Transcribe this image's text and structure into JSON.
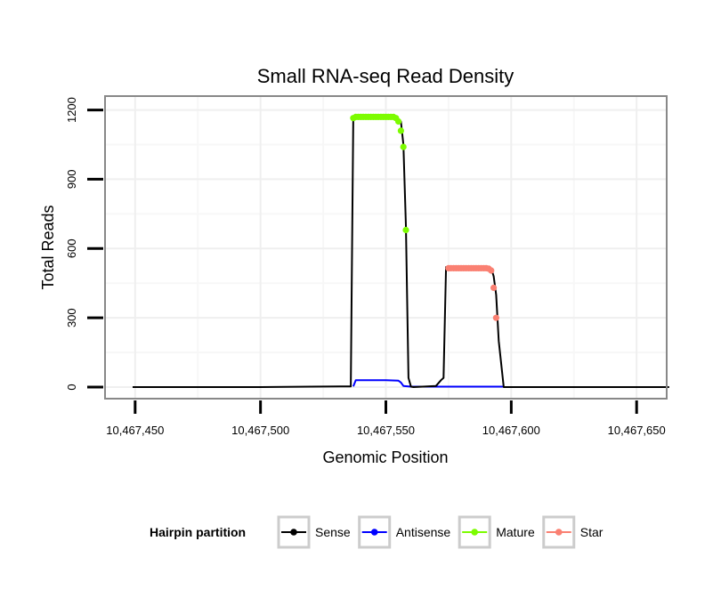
{
  "chart_data": {
    "type": "line",
    "title": "Small RNA-seq Read Density",
    "xlabel": "Genomic Position",
    "ylabel": "Total Reads",
    "xlim": [
      10467438,
      10467662
    ],
    "ylim": [
      -50,
      1260
    ],
    "x_ticks": [
      10467450,
      10467500,
      10467550,
      10467600,
      10467650
    ],
    "x_tick_labels": [
      "10,467,450",
      "10,467,500",
      "10,467,550",
      "10,467,600",
      "10,467,650"
    ],
    "y_ticks": [
      0,
      300,
      600,
      900,
      1200
    ],
    "y_tick_labels": [
      "0",
      "300",
      "600",
      "900",
      "1200"
    ],
    "grid": true,
    "legend": {
      "title": "Hairpin partition",
      "position": "bottom",
      "entries": [
        {
          "label": "Sense",
          "color": "#000000"
        },
        {
          "label": "Antisense",
          "color": "#0000ff"
        },
        {
          "label": "Mature",
          "color": "#7cfc00"
        },
        {
          "label": "Star",
          "color": "#fa8072"
        }
      ]
    },
    "series": [
      {
        "name": "Sense",
        "color": "#000000",
        "kind": "line",
        "x": [
          10467449,
          10467500,
          10467520,
          10467536,
          10467537,
          10467538,
          10467550,
          10467554,
          10467556,
          10467557,
          10467558,
          10467559,
          10467560,
          10467561,
          10467570,
          10467572,
          10467573,
          10467574,
          10467576,
          10467590,
          10467592,
          10467593,
          10467594,
          10467595,
          10467597,
          10467620,
          10467663
        ],
        "y": [
          0,
          0,
          2,
          3,
          1170,
          1170,
          1170,
          1170,
          1150,
          1050,
          700,
          40,
          2,
          0,
          5,
          30,
          40,
          520,
          520,
          520,
          515,
          480,
          400,
          200,
          0,
          0,
          0
        ]
      },
      {
        "name": "Antisense",
        "color": "#0000ff",
        "kind": "line",
        "x": [
          10467537,
          10467538,
          10467550,
          10467555,
          10467556,
          10467557,
          10467560,
          10467575,
          10467597
        ],
        "y": [
          3,
          30,
          30,
          28,
          20,
          5,
          2,
          2,
          2
        ]
      },
      {
        "name": "Mature",
        "color": "#7cfc00",
        "kind": "points",
        "x": [
          10467537,
          10467538,
          10467539,
          10467540,
          10467541,
          10467542,
          10467543,
          10467544,
          10467545,
          10467546,
          10467547,
          10467548,
          10467549,
          10467550,
          10467551,
          10467552,
          10467553,
          10467554,
          10467555,
          10467556,
          10467557,
          10467558
        ],
        "y": [
          1165,
          1170,
          1170,
          1170,
          1170,
          1170,
          1170,
          1170,
          1170,
          1170,
          1170,
          1170,
          1170,
          1170,
          1170,
          1170,
          1170,
          1165,
          1150,
          1110,
          1040,
          680
        ]
      },
      {
        "name": "Star",
        "color": "#fa8072",
        "kind": "points",
        "x": [
          10467575,
          10467576,
          10467577,
          10467578,
          10467579,
          10467580,
          10467581,
          10467582,
          10467583,
          10467584,
          10467585,
          10467586,
          10467587,
          10467588,
          10467589,
          10467590,
          10467591,
          10467592,
          10467593,
          10467594
        ],
        "y": [
          515,
          515,
          515,
          515,
          515,
          515,
          515,
          515,
          515,
          515,
          515,
          515,
          515,
          515,
          515,
          515,
          513,
          505,
          430,
          300
        ]
      }
    ]
  }
}
